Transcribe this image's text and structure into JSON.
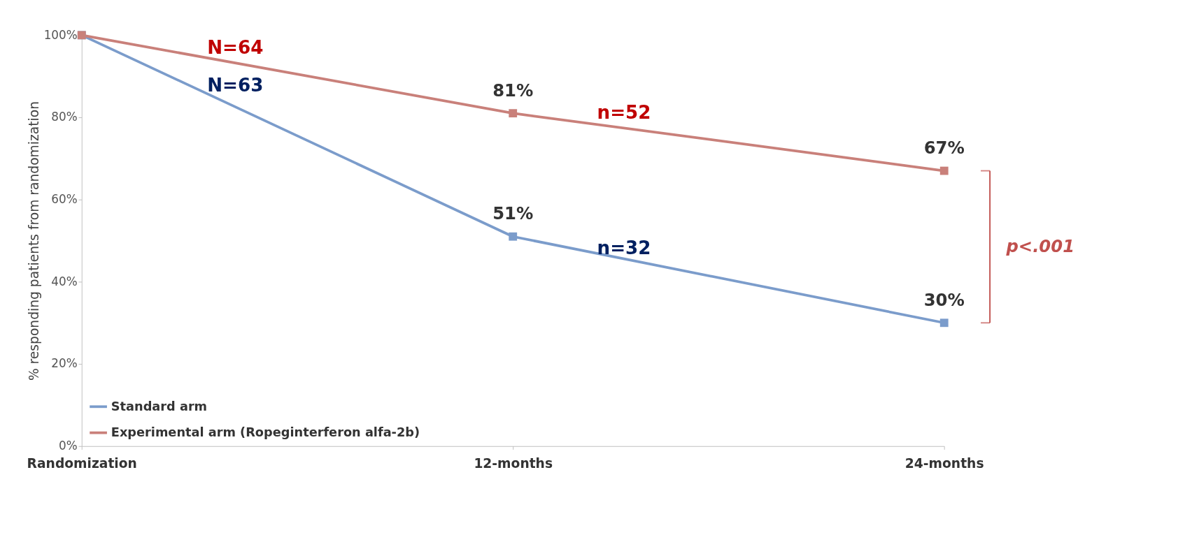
{
  "chart_data": {
    "type": "line",
    "categories": [
      "Randomization",
      "12-months",
      "24-months"
    ],
    "ylabel": "% responding patients from randomization",
    "ylim": [
      0,
      100
    ],
    "yticks": [
      {
        "value": 0,
        "label": "0%"
      },
      {
        "value": 20,
        "label": "20%"
      },
      {
        "value": 40,
        "label": "40%"
      },
      {
        "value": 60,
        "label": "60%"
      },
      {
        "value": 80,
        "label": "80%"
      },
      {
        "value": 100,
        "label": "100%"
      }
    ],
    "series": [
      {
        "name": "Standard arm",
        "color": "#7b9ccb",
        "values": [
          100,
          51,
          30
        ],
        "value_labels": [
          null,
          "51%",
          "30%"
        ]
      },
      {
        "name": "Experimental arm (Ropeginterferon alfa-2b)",
        "color": "#c9807a",
        "values": [
          100,
          81,
          67
        ],
        "value_labels": [
          null,
          "81%",
          "67%"
        ]
      }
    ],
    "annotations": [
      "N=64",
      "N=63",
      "n=52",
      "n=32",
      "p<.001"
    ],
    "marker": "square",
    "line_style": "solid",
    "grid": false,
    "legend": "bottom left"
  }
}
